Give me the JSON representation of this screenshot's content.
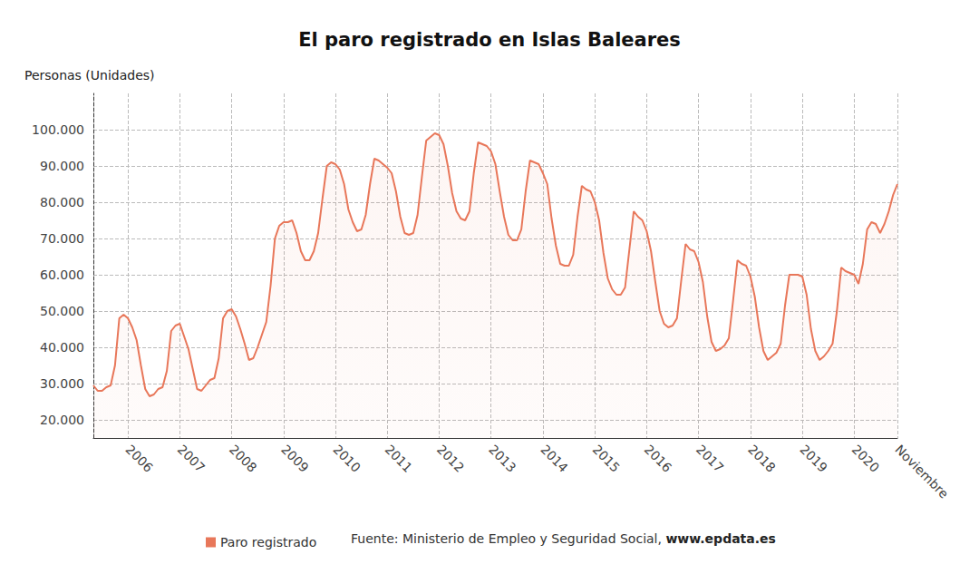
{
  "chart_data": {
    "type": "line",
    "title": "El paro registrado en Islas Baleares",
    "y_label": "Personas (Unidades)",
    "source": "Fuente: Ministerio de Empleo y Seguridad Social,",
    "source_link": "www.epdata.es",
    "categories": [
      null,
      null,
      null,
      null,
      null,
      null,
      null,
      null,
      "2006",
      null,
      null,
      null,
      null,
      null,
      null,
      null,
      null,
      null,
      null,
      null,
      "2007",
      null,
      null,
      null,
      null,
      null,
      null,
      null,
      null,
      null,
      null,
      null,
      "2008",
      null,
      null,
      null,
      null,
      null,
      null,
      null,
      null,
      null,
      null,
      null,
      "2009",
      null,
      null,
      null,
      null,
      null,
      null,
      null,
      null,
      null,
      null,
      null,
      "2010",
      null,
      null,
      null,
      null,
      null,
      null,
      null,
      null,
      null,
      null,
      null,
      "2011",
      null,
      null,
      null,
      null,
      null,
      null,
      null,
      null,
      null,
      null,
      null,
      "2012",
      null,
      null,
      null,
      null,
      null,
      null,
      null,
      null,
      null,
      null,
      null,
      "2013",
      null,
      null,
      null,
      null,
      null,
      null,
      null,
      null,
      null,
      null,
      null,
      "2014",
      null,
      null,
      null,
      null,
      null,
      null,
      null,
      null,
      null,
      null,
      null,
      "2015",
      null,
      null,
      null,
      null,
      null,
      null,
      null,
      null,
      null,
      null,
      null,
      "2016",
      null,
      null,
      null,
      null,
      null,
      null,
      null,
      null,
      null,
      null,
      null,
      "2017",
      null,
      null,
      null,
      null,
      null,
      null,
      null,
      null,
      null,
      null,
      null,
      "2018",
      null,
      null,
      null,
      null,
      null,
      null,
      null,
      null,
      null,
      null,
      null,
      "2019",
      null,
      null,
      null,
      null,
      null,
      null,
      null,
      null,
      null,
      null,
      null,
      "2020",
      null,
      null,
      null,
      null,
      null,
      null,
      null,
      null,
      null,
      "Noviembre"
    ],
    "series": [
      {
        "name": "Paro registrado",
        "color": "#e8775a",
        "values": [
          29500,
          28000,
          28000,
          29000,
          29500,
          35000,
          48000,
          49000,
          48000,
          45500,
          42000,
          35000,
          28500,
          26500,
          27000,
          28500,
          29000,
          33500,
          44500,
          46000,
          46500,
          43000,
          39500,
          34000,
          28500,
          28000,
          29500,
          31000,
          31500,
          37000,
          48000,
          50000,
          50500,
          48500,
          45000,
          41000,
          36500,
          37000,
          40000,
          43500,
          47000,
          57000,
          70000,
          73500,
          74500,
          74500,
          75000,
          71500,
          66500,
          64000,
          64000,
          66500,
          71500,
          81000,
          90000,
          91000,
          90500,
          89000,
          85000,
          78000,
          74500,
          72000,
          72500,
          76500,
          85000,
          92000,
          91500,
          90500,
          89500,
          88000,
          83000,
          76000,
          71500,
          71000,
          71500,
          76500,
          87000,
          97000,
          98000,
          99000,
          98500,
          96000,
          90000,
          82500,
          77500,
          75500,
          75000,
          77500,
          88000,
          96500,
          96000,
          95500,
          94000,
          90500,
          83000,
          76000,
          71000,
          69500,
          69500,
          72500,
          83000,
          91500,
          91000,
          90500,
          88000,
          85000,
          75500,
          68000,
          63000,
          62500,
          62500,
          65500,
          76000,
          84500,
          83500,
          83000,
          80000,
          75000,
          66000,
          59000,
          56000,
          54500,
          54500,
          56500,
          67000,
          77500,
          76000,
          75000,
          72000,
          66500,
          58000,
          50000,
          46500,
          45500,
          46000,
          48000,
          58500,
          68500,
          67000,
          66500,
          63500,
          58000,
          48500,
          41500,
          39000,
          39500,
          40500,
          42500,
          53000,
          64000,
          63000,
          62500,
          59500,
          54000,
          45500,
          39000,
          36500,
          37500,
          38500,
          41000,
          51500,
          60000,
          60000,
          60000,
          59500,
          54500,
          45000,
          39000,
          36500,
          37500,
          39000,
          41000,
          50000,
          62000,
          61000,
          60500,
          60000,
          57500,
          63000,
          72500,
          74500,
          74000,
          71500,
          74000,
          77500,
          82000,
          85000
        ]
      }
    ],
    "ylim": [
      15000,
      110000
    ],
    "yticks": [
      {
        "value": 20000,
        "label": "20.000"
      },
      {
        "value": 30000,
        "label": "30.000"
      },
      {
        "value": 40000,
        "label": "40.000"
      },
      {
        "value": 50000,
        "label": "50.000"
      },
      {
        "value": 60000,
        "label": "60.000"
      },
      {
        "value": 70000,
        "label": "70.000"
      },
      {
        "value": 80000,
        "label": "80.000"
      },
      {
        "value": 90000,
        "label": "90.000"
      },
      {
        "value": 100000,
        "label": "100.000"
      }
    ],
    "grid": true,
    "legend": "bottom"
  }
}
